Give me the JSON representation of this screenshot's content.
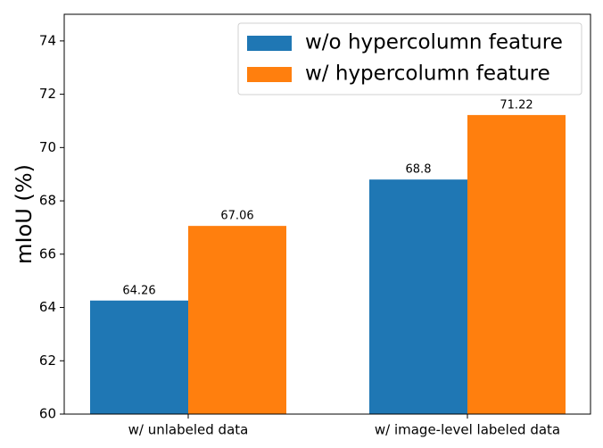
{
  "chart_data": {
    "type": "bar",
    "ylabel": "mIoU (%)",
    "categories": [
      "w/ unlabeled data",
      "w/ image-level labeled data"
    ],
    "series": [
      {
        "name": "w/o hypercolumn feature",
        "color": "#1f77b4",
        "values": [
          64.26,
          68.8
        ]
      },
      {
        "name": "w/ hypercolumn feature",
        "color": "#ff7f0e",
        "values": [
          67.06,
          71.22
        ]
      }
    ],
    "ylim": [
      60,
      75
    ],
    "yticks": [
      60,
      62,
      64,
      66,
      68,
      70,
      72,
      74
    ],
    "legend": "upper right"
  }
}
